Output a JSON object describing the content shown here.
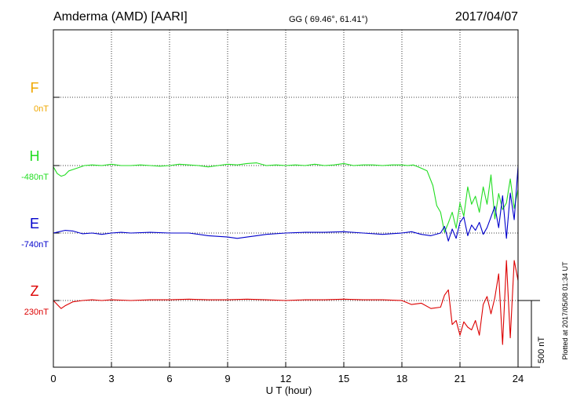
{
  "station": "Amderma (AMD)  [AARI]",
  "coordinates": "GG ( 69.46°,  61.41°)",
  "date": "2017/04/07",
  "plotted_note": "Plotted at 2017/05/08 01:34 UT",
  "scale_label": "500 nT",
  "colors": {
    "F": "#f0a800",
    "H": "#22dd22",
    "E": "#0000cc",
    "Z": "#dd0000",
    "grid": "#000000",
    "axis": "#000000"
  },
  "components": [
    {
      "key": "F",
      "name": "F",
      "baseline": "0nT"
    },
    {
      "key": "H",
      "name": "H",
      "baseline": "-480nT"
    },
    {
      "key": "E",
      "name": "E",
      "baseline": "-740nT"
    },
    {
      "key": "Z",
      "name": "Z",
      "baseline": "230nT"
    }
  ],
  "chart_data": {
    "type": "line",
    "title": "Amderma (AMD)  [AARI]",
    "xlabel": "U T (hour)",
    "ylabel": "",
    "xlim": [
      0,
      24
    ],
    "xticks": [
      0,
      3,
      6,
      9,
      12,
      15,
      18,
      21,
      24
    ],
    "grid": true,
    "scale_bar_nT": 500,
    "y_range_nT": [
      -1800,
      1800
    ],
    "series": [
      {
        "name": "H",
        "baseline_nT": -480,
        "x": [
          0,
          0.2,
          0.4,
          0.6,
          0.8,
          1,
          1.3,
          1.6,
          2,
          2.5,
          3,
          3.5,
          4,
          4.5,
          5,
          5.5,
          6,
          6.5,
          7,
          7.5,
          8,
          8.5,
          9,
          9.5,
          10,
          10.5,
          11,
          11.5,
          12,
          12.5,
          13,
          13.5,
          14,
          14.5,
          15,
          15.5,
          16,
          16.5,
          17,
          17.5,
          18,
          18.3,
          18.6,
          19,
          19.3,
          19.6,
          19.8,
          20,
          20.2,
          20.4,
          20.6,
          20.8,
          21,
          21.2,
          21.4,
          21.6,
          21.8,
          22,
          22.2,
          22.4,
          22.6,
          22.8,
          23,
          23.2,
          23.4,
          23.6,
          23.8,
          24
        ],
        "y": [
          -10,
          -60,
          -80,
          -70,
          -40,
          -30,
          -15,
          0,
          5,
          0,
          10,
          0,
          0,
          5,
          0,
          -5,
          0,
          10,
          5,
          0,
          -10,
          0,
          10,
          5,
          15,
          20,
          0,
          5,
          0,
          5,
          0,
          10,
          0,
          5,
          15,
          0,
          5,
          5,
          0,
          5,
          5,
          0,
          5,
          -20,
          -40,
          -150,
          -300,
          -350,
          -500,
          -430,
          -350,
          -470,
          -280,
          -380,
          -160,
          -290,
          -230,
          -350,
          -160,
          -290,
          -70,
          -400,
          -210,
          -330,
          -280,
          -100,
          -320,
          -180
        ]
      },
      {
        "name": "E",
        "baseline_nT": -740,
        "x": [
          0,
          0.3,
          0.6,
          1,
          1.5,
          2,
          2.5,
          3,
          3.5,
          4,
          5,
          6,
          7,
          8,
          9,
          9.5,
          10,
          10.5,
          11,
          12,
          13,
          14,
          15,
          16,
          17,
          18,
          18.5,
          19,
          19.5,
          20,
          20.2,
          20.4,
          20.6,
          20.8,
          21,
          21.2,
          21.4,
          21.6,
          21.8,
          22,
          22.2,
          22.4,
          22.6,
          22.8,
          23,
          23.2,
          23.4,
          23.6,
          23.8,
          24
        ],
        "y": [
          0,
          10,
          20,
          15,
          -5,
          0,
          -10,
          0,
          5,
          0,
          5,
          0,
          0,
          -20,
          -30,
          -40,
          -30,
          -20,
          -10,
          0,
          5,
          5,
          10,
          0,
          -10,
          0,
          10,
          -10,
          -20,
          0,
          50,
          -60,
          30,
          -40,
          80,
          120,
          -20,
          60,
          20,
          80,
          -10,
          40,
          120,
          200,
          40,
          280,
          -40,
          300,
          100,
          500
        ]
      },
      {
        "name": "Z",
        "baseline_nT": 230,
        "x": [
          0,
          0.2,
          0.4,
          0.6,
          1,
          1.5,
          2,
          2.5,
          3,
          4,
          5,
          6,
          7,
          8,
          9,
          10,
          11,
          12,
          13,
          14,
          15,
          16,
          17,
          18,
          18.5,
          19,
          19.5,
          20,
          20.2,
          20.4,
          20.6,
          20.8,
          21,
          21.2,
          21.4,
          21.6,
          21.8,
          22,
          22.2,
          22.4,
          22.6,
          22.8,
          23,
          23.2,
          23.4,
          23.6,
          23.8,
          24
        ],
        "y": [
          0,
          -30,
          -60,
          -40,
          -10,
          0,
          5,
          0,
          5,
          0,
          5,
          5,
          10,
          5,
          5,
          10,
          5,
          0,
          5,
          5,
          10,
          5,
          5,
          0,
          -30,
          -20,
          -60,
          -50,
          40,
          80,
          -180,
          -150,
          -260,
          -160,
          -200,
          -220,
          -150,
          -260,
          -30,
          30,
          -100,
          20,
          200,
          -330,
          300,
          -280,
          300,
          150
        ]
      }
    ]
  }
}
